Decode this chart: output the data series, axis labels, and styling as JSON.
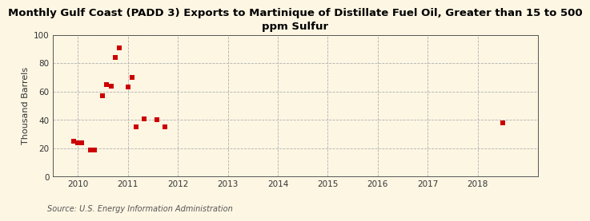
{
  "title": "Monthly Gulf Coast (PADD 3) Exports to Martinique of Distillate Fuel Oil, Greater than 15 to 500\nppm Sulfur",
  "ylabel": "Thousand Barrels",
  "source": "Source: U.S. Energy Information Administration",
  "background_color": "#fdf6e3",
  "plot_bg_color": "#ffffff",
  "marker_color": "#cc0000",
  "xlim": [
    2009.5,
    2019.2
  ],
  "ylim": [
    0,
    100
  ],
  "yticks": [
    0,
    20,
    40,
    60,
    80,
    100
  ],
  "xticks": [
    2010,
    2011,
    2012,
    2013,
    2014,
    2015,
    2016,
    2017,
    2018
  ],
  "data_x": [
    2009.92,
    2010.0,
    2010.08,
    2010.25,
    2010.33,
    2010.5,
    2010.58,
    2010.67,
    2010.75,
    2010.83,
    2011.0,
    2011.08,
    2011.17,
    2011.33,
    2011.58,
    2011.75,
    2018.5
  ],
  "data_y": [
    25,
    24,
    24,
    19,
    19,
    57,
    65,
    64,
    84,
    91,
    63,
    70,
    35,
    41,
    40,
    35,
    38
  ]
}
